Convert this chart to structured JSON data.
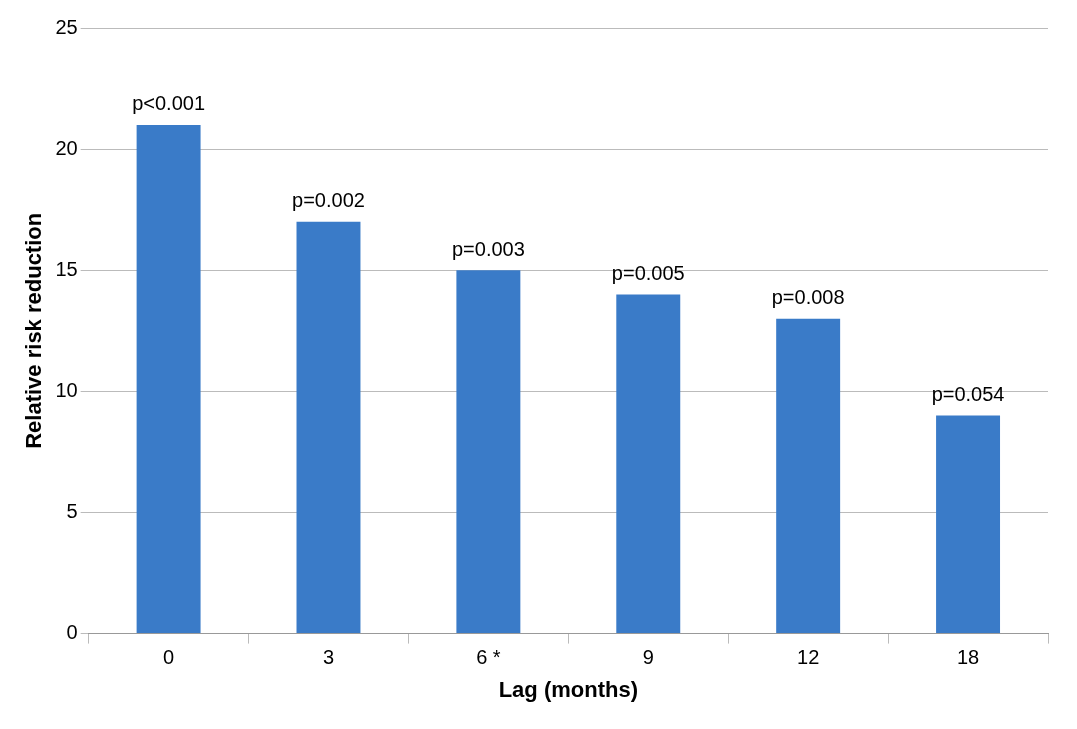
{
  "chart_data": {
    "type": "bar",
    "xlabel": "Lag (months)",
    "ylabel": "Relative risk reduction",
    "categories": [
      "0",
      "3",
      "6 *",
      "9",
      "12",
      "18"
    ],
    "values": [
      21,
      17,
      15,
      14,
      13,
      9
    ],
    "annotations": [
      {
        "text": "p<0.001",
        "x": "0",
        "y": 21
      },
      {
        "text": "p=0.002",
        "x": "3",
        "y": 17
      },
      {
        "text": "p=0.003",
        "x": "6 *",
        "y": 15
      },
      {
        "text": "p=0.005",
        "x": "9",
        "y": 14
      },
      {
        "text": "p=0.008",
        "x": "12",
        "y": 13
      },
      {
        "text": "p=0.054",
        "x": "18",
        "y": 9
      }
    ],
    "color": "#3a7bc8",
    "ylim": [
      0,
      25
    ],
    "yticks": [
      0,
      5,
      10,
      15,
      20,
      25
    ],
    "grid": "y"
  }
}
